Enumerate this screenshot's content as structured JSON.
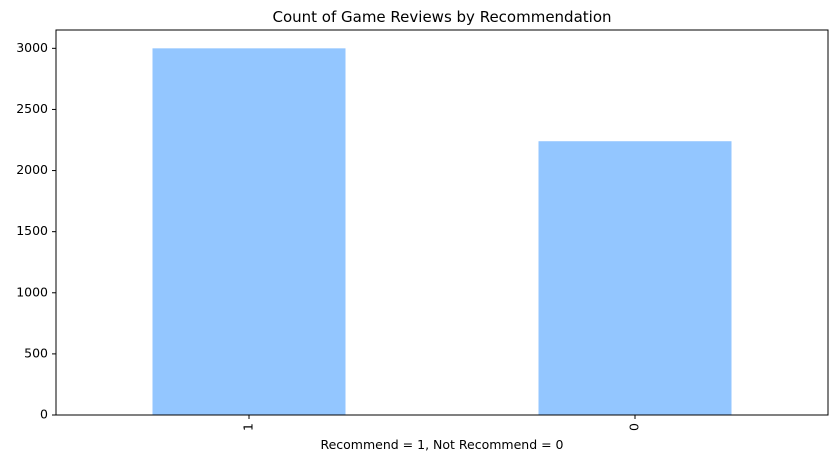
{
  "chart_data": {
    "type": "bar",
    "title": "Count of Game Reviews by Recommendation",
    "xlabel": "Recommend = 1, Not Recommend = 0",
    "ylabel": "",
    "categories": [
      "1",
      "0"
    ],
    "values": [
      3000,
      2240
    ],
    "ylim": [
      0,
      3150
    ],
    "yticks": [
      0,
      500,
      1000,
      1500,
      2000,
      2500,
      3000
    ],
    "ytick_labels": [
      "0",
      "500",
      "1000",
      "1500",
      "2000",
      "2500",
      "3000"
    ],
    "bar_color": "#93c6ff",
    "grid": false,
    "legend": "none",
    "xtick_rotation": "vertical"
  }
}
